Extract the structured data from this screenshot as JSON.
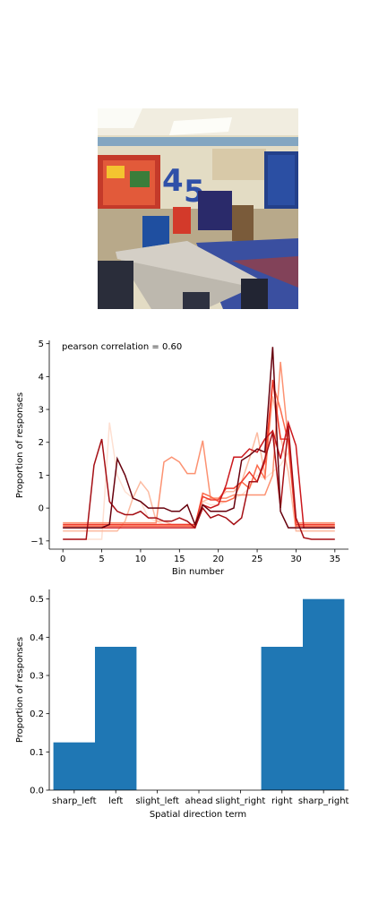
{
  "photo": {
    "kind": "classroom-photo"
  },
  "chart_data": [
    {
      "type": "line",
      "annotation": "pearson correlation = 0.60",
      "xlabel": "Bin number",
      "ylabel": "Proportion of responses",
      "xlim": [
        -1.75,
        36.75
      ],
      "ylim": [
        -1.25,
        5.1
      ],
      "xticks": [
        0,
        5,
        10,
        15,
        20,
        25,
        30,
        35
      ],
      "yticks": [
        -1,
        0,
        1,
        2,
        3,
        4,
        5
      ],
      "grid": false,
      "colormap": "Reds",
      "series": [
        {
          "color": "#fee0d2",
          "values": [
            -0.95,
            -0.95,
            -0.95,
            -0.95,
            -0.95,
            -0.95,
            2.6,
            1.0,
            0.5,
            0.3,
            0.2,
            -0.3,
            -0.4,
            -0.5,
            -0.5,
            -0.5,
            -0.5,
            -0.5,
            0.2,
            0.1,
            0.1,
            0.2,
            0.3,
            0.4,
            0.6,
            1.0,
            0.9,
            1.1,
            1.3,
            1.7,
            -0.4,
            -0.6,
            -0.6,
            -0.6,
            -0.6,
            -0.6
          ]
        },
        {
          "color": "#fcbba1",
          "values": [
            -0.7,
            -0.7,
            -0.7,
            -0.7,
            -0.7,
            -0.7,
            -0.7,
            -0.7,
            -0.4,
            0.3,
            0.8,
            0.5,
            -0.4,
            -0.4,
            -0.5,
            -0.5,
            -0.5,
            -0.6,
            0.2,
            0.3,
            0.3,
            0.5,
            0.5,
            0.8,
            1.5,
            2.3,
            1.0,
            3.4,
            2.2,
            1.1,
            -0.7,
            -0.7,
            -0.7,
            -0.7,
            -0.7,
            -0.7
          ]
        },
        {
          "color": "#fc9272",
          "values": [
            -0.45,
            -0.45,
            -0.45,
            -0.45,
            -0.45,
            -0.45,
            -0.45,
            -0.45,
            -0.45,
            -0.45,
            -0.45,
            -0.45,
            -0.45,
            1.4,
            1.55,
            1.4,
            1.05,
            1.05,
            2.05,
            0.3,
            0.3,
            0.3,
            0.4,
            0.4,
            0.4,
            0.4,
            0.4,
            1.0,
            4.45,
            2.05,
            -0.45,
            -0.45,
            -0.45,
            -0.45,
            -0.45,
            -0.45
          ]
        },
        {
          "color": "#fb6a4a",
          "values": [
            -0.55,
            -0.55,
            -0.55,
            -0.55,
            -0.55,
            -0.55,
            -0.55,
            -0.55,
            -0.55,
            -0.55,
            -0.55,
            -0.55,
            -0.55,
            -0.55,
            -0.55,
            -0.55,
            -0.55,
            -0.55,
            0.45,
            0.35,
            0.2,
            0.2,
            0.3,
            0.8,
            0.6,
            1.3,
            0.9,
            3.8,
            3.0,
            2.0,
            -0.55,
            -0.55,
            -0.55,
            -0.55,
            -0.55,
            -0.55
          ]
        },
        {
          "color": "#ef3b2c",
          "values": [
            -0.5,
            -0.5,
            -0.5,
            -0.5,
            -0.5,
            -0.5,
            -0.5,
            -0.5,
            -0.5,
            -0.5,
            -0.5,
            -0.5,
            -0.5,
            -0.5,
            -0.5,
            -0.5,
            -0.5,
            -0.5,
            0.35,
            0.25,
            0.25,
            0.6,
            0.6,
            0.8,
            1.1,
            0.8,
            1.4,
            3.9,
            2.1,
            2.1,
            -0.5,
            -0.5,
            -0.5,
            -0.5,
            -0.5,
            -0.5
          ]
        },
        {
          "color": "#cb181d",
          "values": [
            -0.6,
            -0.6,
            -0.6,
            -0.6,
            -0.6,
            -0.6,
            -0.6,
            -0.6,
            -0.6,
            -0.6,
            -0.6,
            -0.6,
            -0.6,
            -0.6,
            -0.6,
            -0.6,
            -0.6,
            -0.6,
            0.1,
            0.0,
            0.1,
            0.7,
            1.55,
            1.55,
            1.8,
            1.7,
            2.1,
            2.35,
            1.5,
            2.6,
            1.9,
            -0.6,
            -0.6,
            -0.6,
            -0.6,
            -0.6
          ]
        },
        {
          "color": "#a50f15",
          "values": [
            -0.95,
            -0.95,
            -0.95,
            -0.95,
            1.3,
            2.1,
            0.2,
            -0.1,
            -0.2,
            -0.2,
            -0.1,
            -0.3,
            -0.3,
            -0.4,
            -0.4,
            -0.3,
            -0.4,
            -0.6,
            0.0,
            -0.3,
            -0.2,
            -0.3,
            -0.5,
            -0.3,
            0.8,
            0.8,
            1.5,
            2.3,
            0.0,
            2.5,
            -0.3,
            -0.9,
            -0.95,
            -0.95,
            -0.95,
            -0.95
          ]
        },
        {
          "color": "#67000d",
          "values": [
            -0.6,
            -0.6,
            -0.6,
            -0.6,
            -0.6,
            -0.6,
            -0.5,
            1.5,
            1.0,
            0.3,
            0.2,
            0.0,
            0.0,
            0.0,
            -0.1,
            -0.1,
            0.1,
            -0.5,
            0.1,
            -0.1,
            -0.1,
            -0.1,
            0.0,
            1.45,
            1.6,
            1.8,
            1.7,
            4.9,
            -0.1,
            -0.6,
            -0.6,
            -0.6,
            -0.6,
            -0.6,
            -0.6,
            -0.6
          ]
        }
      ]
    },
    {
      "type": "bar",
      "xlabel": "Spatial direction term",
      "ylabel": "Proportion of responses",
      "categories": [
        "sharp_left",
        "left",
        "slight_left",
        "ahead",
        "slight_right",
        "right",
        "sharp_right"
      ],
      "values": [
        0.125,
        0.375,
        0,
        0,
        0,
        0.375,
        0.5
      ],
      "ylim": [
        0,
        0.525
      ],
      "yticks": [
        0.0,
        0.1,
        0.2,
        0.3,
        0.4,
        0.5
      ],
      "ytick_labels": [
        "0.0",
        "0.1",
        "0.2",
        "0.3",
        "0.4",
        "0.5"
      ],
      "bar_color": "#1f77b4",
      "grid": false
    }
  ]
}
